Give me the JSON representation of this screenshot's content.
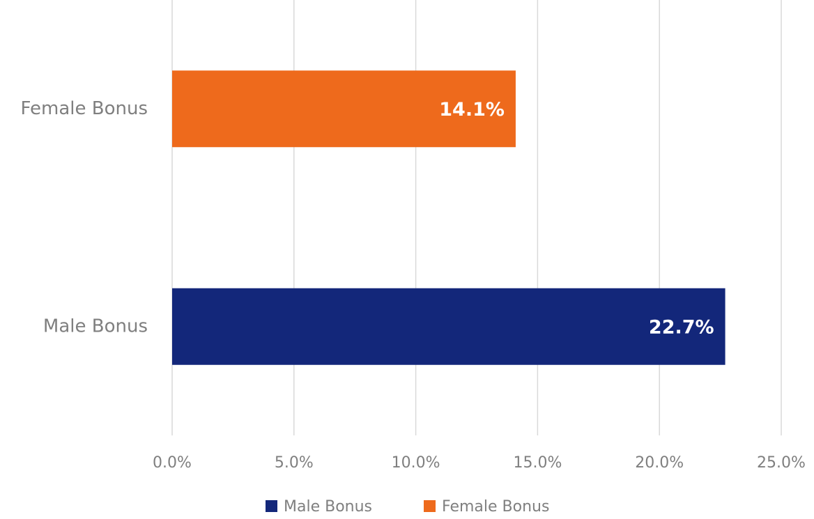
{
  "chart_data": {
    "type": "bar",
    "orientation": "horizontal",
    "categories": [
      "Male Bonus",
      "Female Bonus"
    ],
    "series": [
      {
        "name": "Male Bonus",
        "color": "#13277a",
        "values": [
          22.7,
          null
        ],
        "value_labels": [
          "22.7%",
          null
        ]
      },
      {
        "name": "Female Bonus",
        "color": "#ee6a1c",
        "values": [
          null,
          14.1
        ],
        "value_labels": [
          null,
          "14.1%"
        ]
      }
    ],
    "xlim": [
      0,
      25
    ],
    "xticks": [
      {
        "value": 0,
        "label": "0.0%"
      },
      {
        "value": 5,
        "label": "5.0%"
      },
      {
        "value": 10,
        "label": "10.0%"
      },
      {
        "value": 15,
        "label": "15.0%"
      },
      {
        "value": 20,
        "label": "20.0%"
      },
      {
        "value": 25,
        "label": "25.0%"
      }
    ],
    "grid": true,
    "legend": "bottom"
  }
}
